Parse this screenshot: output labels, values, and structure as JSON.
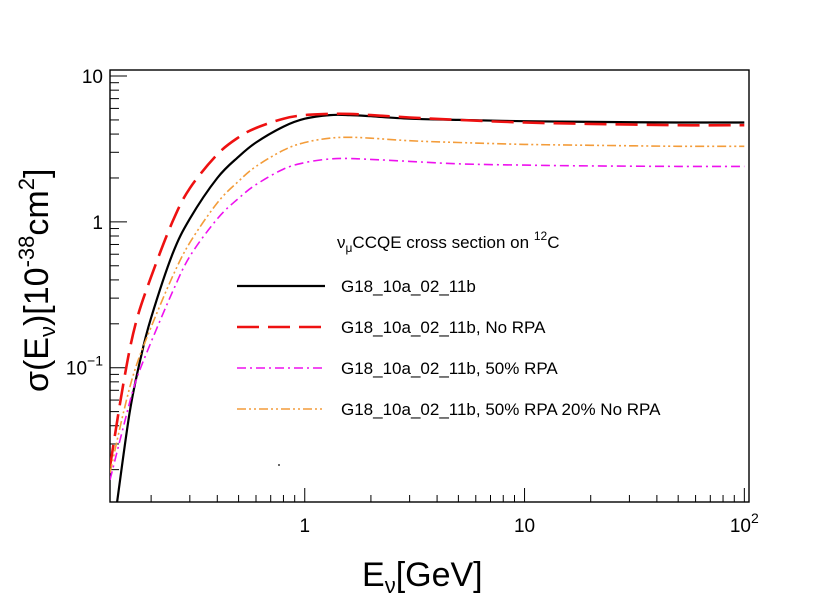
{
  "chart_data": {
    "type": "line",
    "title": "",
    "legend_header": {
      "nu": "ν",
      "mu": "μ",
      "text": "CCQE cross section on ",
      "isotope_mass": "12",
      "element": "C"
    },
    "xlabel": {
      "main": "E",
      "sub": "ν",
      "rest": "[GeV]"
    },
    "ylabel": {
      "sigma": "σ(E",
      "sub": "ν",
      "unit_open": ")[10",
      "exp": "-38",
      "unit_mid": "cm",
      "exp2": "2",
      "unit_close": "]"
    },
    "x_scale": "log",
    "y_scale": "log",
    "xlim": [
      0.13,
      105
    ],
    "ylim": [
      0.012,
      11
    ],
    "x_ticks": [
      {
        "value": 1,
        "label": "1"
      },
      {
        "value": 10,
        "label": "10"
      },
      {
        "value": 100,
        "label_base": "10",
        "label_exp": "2"
      }
    ],
    "y_ticks": [
      {
        "value": 0.1,
        "label_base": "10",
        "label_exp": "−1"
      },
      {
        "value": 1,
        "label": "1"
      },
      {
        "value": 10,
        "label": "10"
      }
    ],
    "legend_position": "center-right",
    "series": [
      {
        "name": "G18_10a_02_11b",
        "color": "#000000",
        "dash": "solid",
        "x": [
          0.14,
          0.16,
          0.18,
          0.2,
          0.25,
          0.3,
          0.4,
          0.5,
          0.6,
          0.8,
          1.0,
          1.3,
          1.6,
          2,
          3,
          5,
          10,
          20,
          50,
          100
        ],
        "y": [
          0.012,
          0.05,
          0.12,
          0.22,
          0.6,
          1.05,
          2.0,
          2.8,
          3.5,
          4.5,
          5.1,
          5.4,
          5.4,
          5.3,
          5.1,
          5.0,
          4.9,
          4.85,
          4.8,
          4.8
        ]
      },
      {
        "name": "G18_10a_02_11b, No RPA",
        "color": "#ee1111",
        "dash": "long-dash",
        "x": [
          0.13,
          0.15,
          0.17,
          0.2,
          0.25,
          0.3,
          0.4,
          0.5,
          0.6,
          0.8,
          1.0,
          1.3,
          1.6,
          2,
          3,
          5,
          10,
          20,
          50,
          100
        ],
        "y": [
          0.021,
          0.08,
          0.2,
          0.42,
          1.0,
          1.7,
          2.9,
          3.8,
          4.4,
          5.1,
          5.4,
          5.5,
          5.5,
          5.4,
          5.2,
          5.0,
          4.8,
          4.7,
          4.6,
          4.6
        ]
      },
      {
        "name": "G18_10a_02_11b, 50% RPA",
        "color": "#ee11ee",
        "dash": "dash-dot",
        "x": [
          0.13,
          0.15,
          0.17,
          0.2,
          0.25,
          0.3,
          0.4,
          0.5,
          0.6,
          0.8,
          1.0,
          1.3,
          1.6,
          2,
          3,
          5,
          10,
          20,
          50,
          100
        ],
        "y": [
          0.017,
          0.04,
          0.08,
          0.15,
          0.33,
          0.58,
          1.05,
          1.45,
          1.8,
          2.3,
          2.55,
          2.7,
          2.72,
          2.68,
          2.6,
          2.5,
          2.45,
          2.42,
          2.4,
          2.4
        ]
      },
      {
        "name": "G18_10a_02_11b, 50% RPA 20% No RPA",
        "color": "#f39c3a",
        "dash": "dash-dot-dot",
        "x": [
          0.13,
          0.15,
          0.17,
          0.2,
          0.25,
          0.3,
          0.4,
          0.5,
          0.6,
          0.8,
          1.0,
          1.3,
          1.6,
          2,
          3,
          5,
          10,
          20,
          50,
          100
        ],
        "y": [
          0.019,
          0.05,
          0.1,
          0.19,
          0.42,
          0.72,
          1.35,
          1.9,
          2.4,
          3.1,
          3.5,
          3.75,
          3.8,
          3.75,
          3.6,
          3.5,
          3.4,
          3.35,
          3.3,
          3.3
        ]
      }
    ]
  }
}
